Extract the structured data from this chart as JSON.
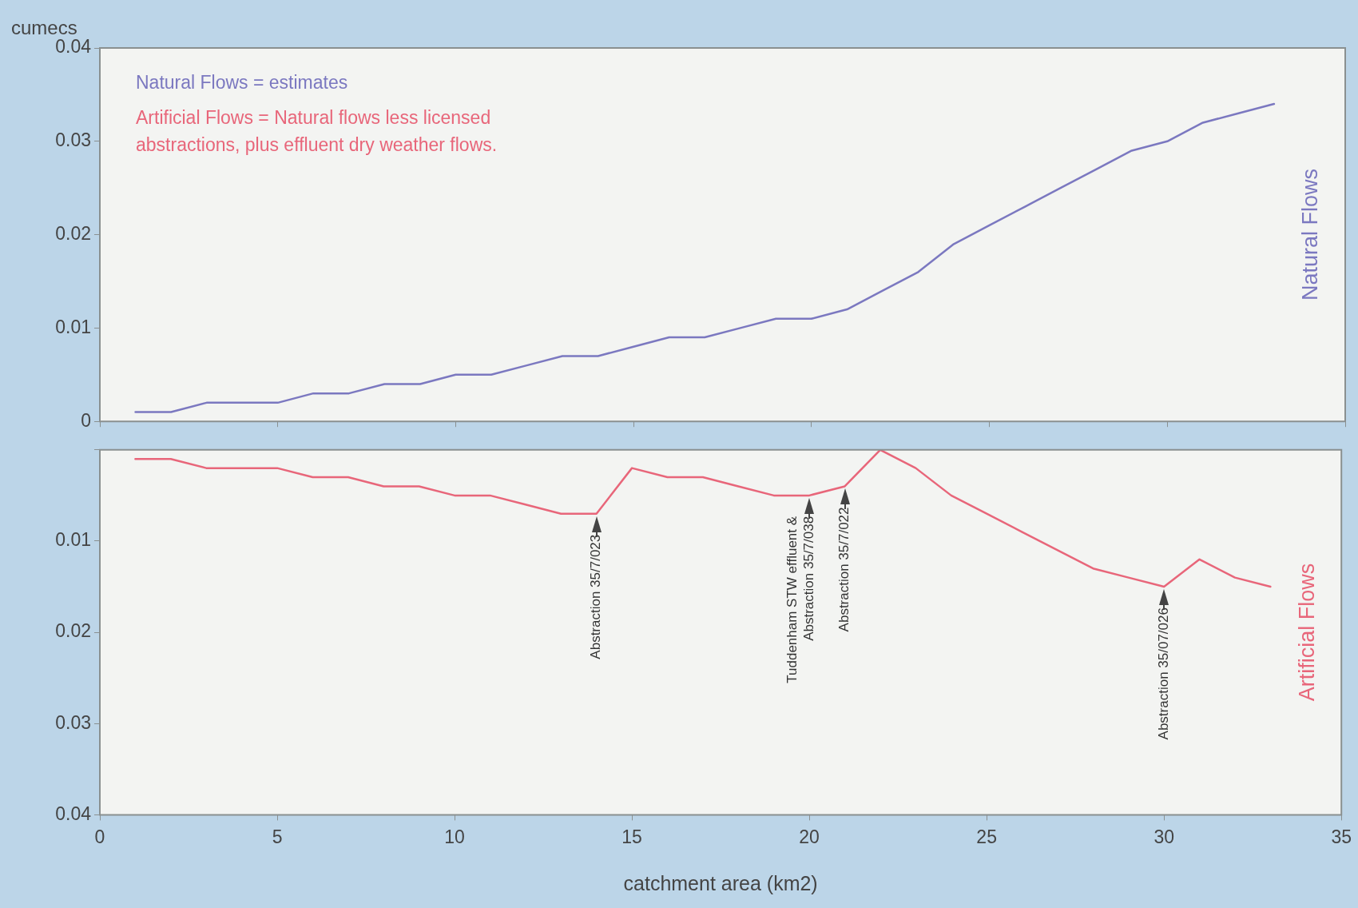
{
  "chart_data": [
    {
      "type": "line",
      "ylabel": "cumecs",
      "xlim": [
        0,
        35
      ],
      "xticks": [
        0,
        5,
        10,
        15,
        20,
        25,
        30,
        35
      ],
      "ylim": [
        0,
        0.04
      ],
      "yticks": [
        0,
        0.01,
        0.02,
        0.03,
        0.04
      ],
      "tick_labels": "y",
      "marker": "none",
      "line_style": "solid",
      "x": [
        1,
        2,
        3,
        4,
        5,
        6,
        7,
        8,
        9,
        10,
        11,
        12,
        13,
        14,
        15,
        16,
        17,
        18,
        19,
        20,
        21,
        22,
        23,
        24,
        25,
        26,
        27,
        28,
        29,
        30,
        31,
        32,
        33
      ],
      "series": [
        {
          "name": "Natural Flows",
          "color": "#7b78c0",
          "values": [
            0.001,
            0.001,
            0.002,
            0.002,
            0.002,
            0.003,
            0.003,
            0.004,
            0.004,
            0.005,
            0.005,
            0.006,
            0.007,
            0.007,
            0.008,
            0.009,
            0.009,
            0.01,
            0.011,
            0.011,
            0.012,
            0.014,
            0.016,
            0.019,
            0.021,
            0.023,
            0.025,
            0.027,
            0.029,
            0.03,
            0.032,
            0.033,
            0.034
          ]
        }
      ],
      "annotations": [
        "Natural Flows = estimates",
        "Artificial Flows = Natural flows less licensed\nabstractions, plus effluent dry weather flows."
      ]
    },
    {
      "type": "line",
      "xlabel": "catchment area (km2)",
      "xlim": [
        0,
        35
      ],
      "xticks": [
        0,
        5,
        10,
        15,
        20,
        25,
        30,
        35
      ],
      "ylim": [
        0.04,
        0
      ],
      "yticks": [
        {
          "value": 0,
          "label": null
        },
        0.01,
        0.02,
        0.03,
        0.04
      ],
      "marker": "none",
      "line_style": "solid",
      "x": [
        1,
        2,
        3,
        4,
        5,
        6,
        7,
        8,
        9,
        10,
        11,
        12,
        13,
        14,
        15,
        16,
        17,
        18,
        19,
        20,
        21,
        22,
        23,
        24,
        25,
        26,
        27,
        28,
        29,
        30,
        31,
        32,
        33
      ],
      "series": [
        {
          "name": "Artificial Flows",
          "color": "#e8667a",
          "values": [
            0.001,
            0.001,
            0.002,
            0.002,
            0.002,
            0.003,
            0.003,
            0.004,
            0.004,
            0.005,
            0.005,
            0.006,
            0.007,
            0.007,
            0.002,
            0.003,
            0.003,
            0.004,
            0.005,
            0.005,
            0.004,
            0.0,
            0.002,
            0.005,
            0.007,
            0.009,
            0.011,
            0.013,
            0.014,
            0.015,
            0.012,
            0.014,
            0.015
          ]
        }
      ],
      "annotations": [
        {
          "text": "Abstraction 35/7/023",
          "x": 14,
          "y": 0.007
        },
        {
          "text": "Tuddenham STW effluent &\nAbstraction 35/7/038",
          "x": 20,
          "y": 0.005
        },
        {
          "text": "Abstraction 35/7/022",
          "x": 21,
          "y": 0.004
        },
        {
          "text": "Abstraction 35/07/026",
          "x": 30,
          "y": 0.015
        }
      ]
    }
  ]
}
